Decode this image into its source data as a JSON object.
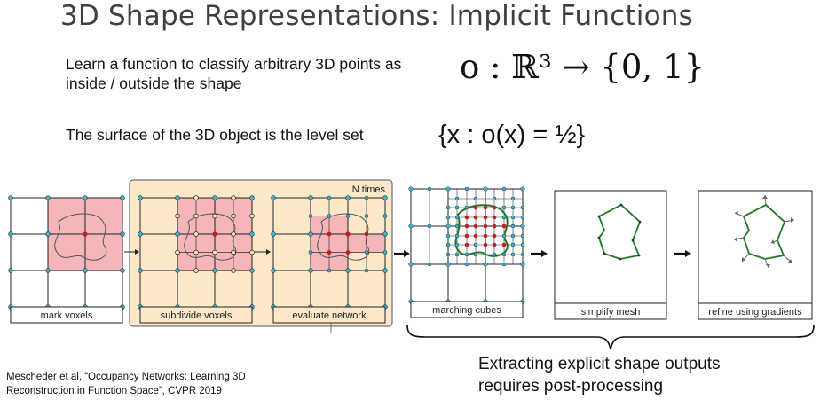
{
  "slide": {
    "title": "3D Shape Representations: Implicit Functions",
    "point1": "Learn a function to classify arbitrary 3D points as inside / outside the shape",
    "point2": "The surface of the 3D object is the level set",
    "equation1": "o : ℝ³ → {0, 1}",
    "equation2": "{x : o(x) = ½}",
    "note_line1": "Extracting explicit shape outputs",
    "note_line2": "requires post-processing",
    "citation_line1": "Mescheder et al, “Occupancy Networks: Learning 3D",
    "citation_line2": "Reconstruction in Function Space”, CVPR 2019"
  },
  "figure": {
    "loop_label": "N times",
    "stages": [
      "mark voxels",
      "subdivide voxels",
      "evaluate network",
      "marching cubes",
      "simplify mesh",
      "refine using gradients"
    ],
    "colors": {
      "highlight": "#f4b6b8",
      "loop_box": "#fbe8c8",
      "node": "#3fb3c9",
      "inside_point": "#c0201f",
      "mesh": "#3f9a45"
    }
  }
}
